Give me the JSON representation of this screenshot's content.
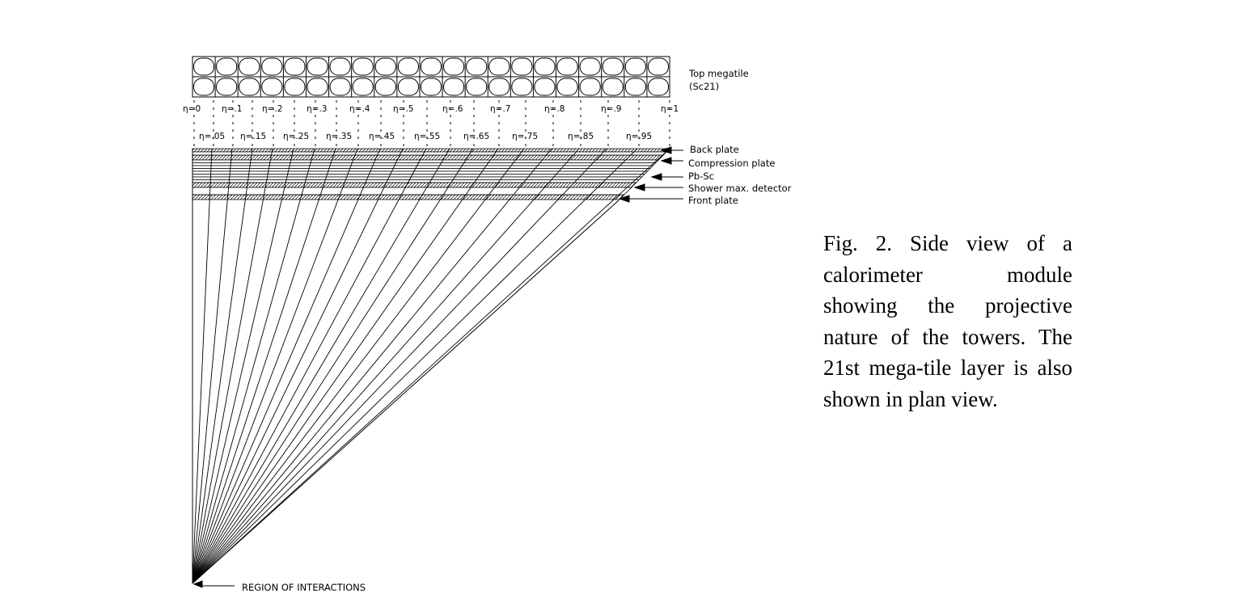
{
  "labels": {
    "top_megatile_line1": "Top megatile",
    "top_megatile_line2": "(Sc21)",
    "back_plate": "Back plate",
    "compression_plate": "Compression plate",
    "pb_sc": "Pb-Sc",
    "shower_max": "Shower max. detector",
    "front_plate": "Front plate",
    "region": "REGION OF INTERACTIONS"
  },
  "eta_boundaries": [
    "η=0",
    "η=.1",
    "η=.2",
    "η=.3",
    "η=.4",
    "η=.5",
    "η=.6",
    "η=.7",
    "η=.8",
    "η=.9",
    "η=1"
  ],
  "eta_centers": [
    "η=.05",
    "η=.15",
    "η=.25",
    "η=.35",
    "η=.45",
    "η=.55",
    "η=.65",
    "η=.75",
    "η=.85",
    "η=.95"
  ],
  "tower_count": 21,
  "caption": "Fig. 2. Side view of a calorimeter module showing the projective nature of the towers. The 21st mega-tile layer is also shown in plan view."
}
